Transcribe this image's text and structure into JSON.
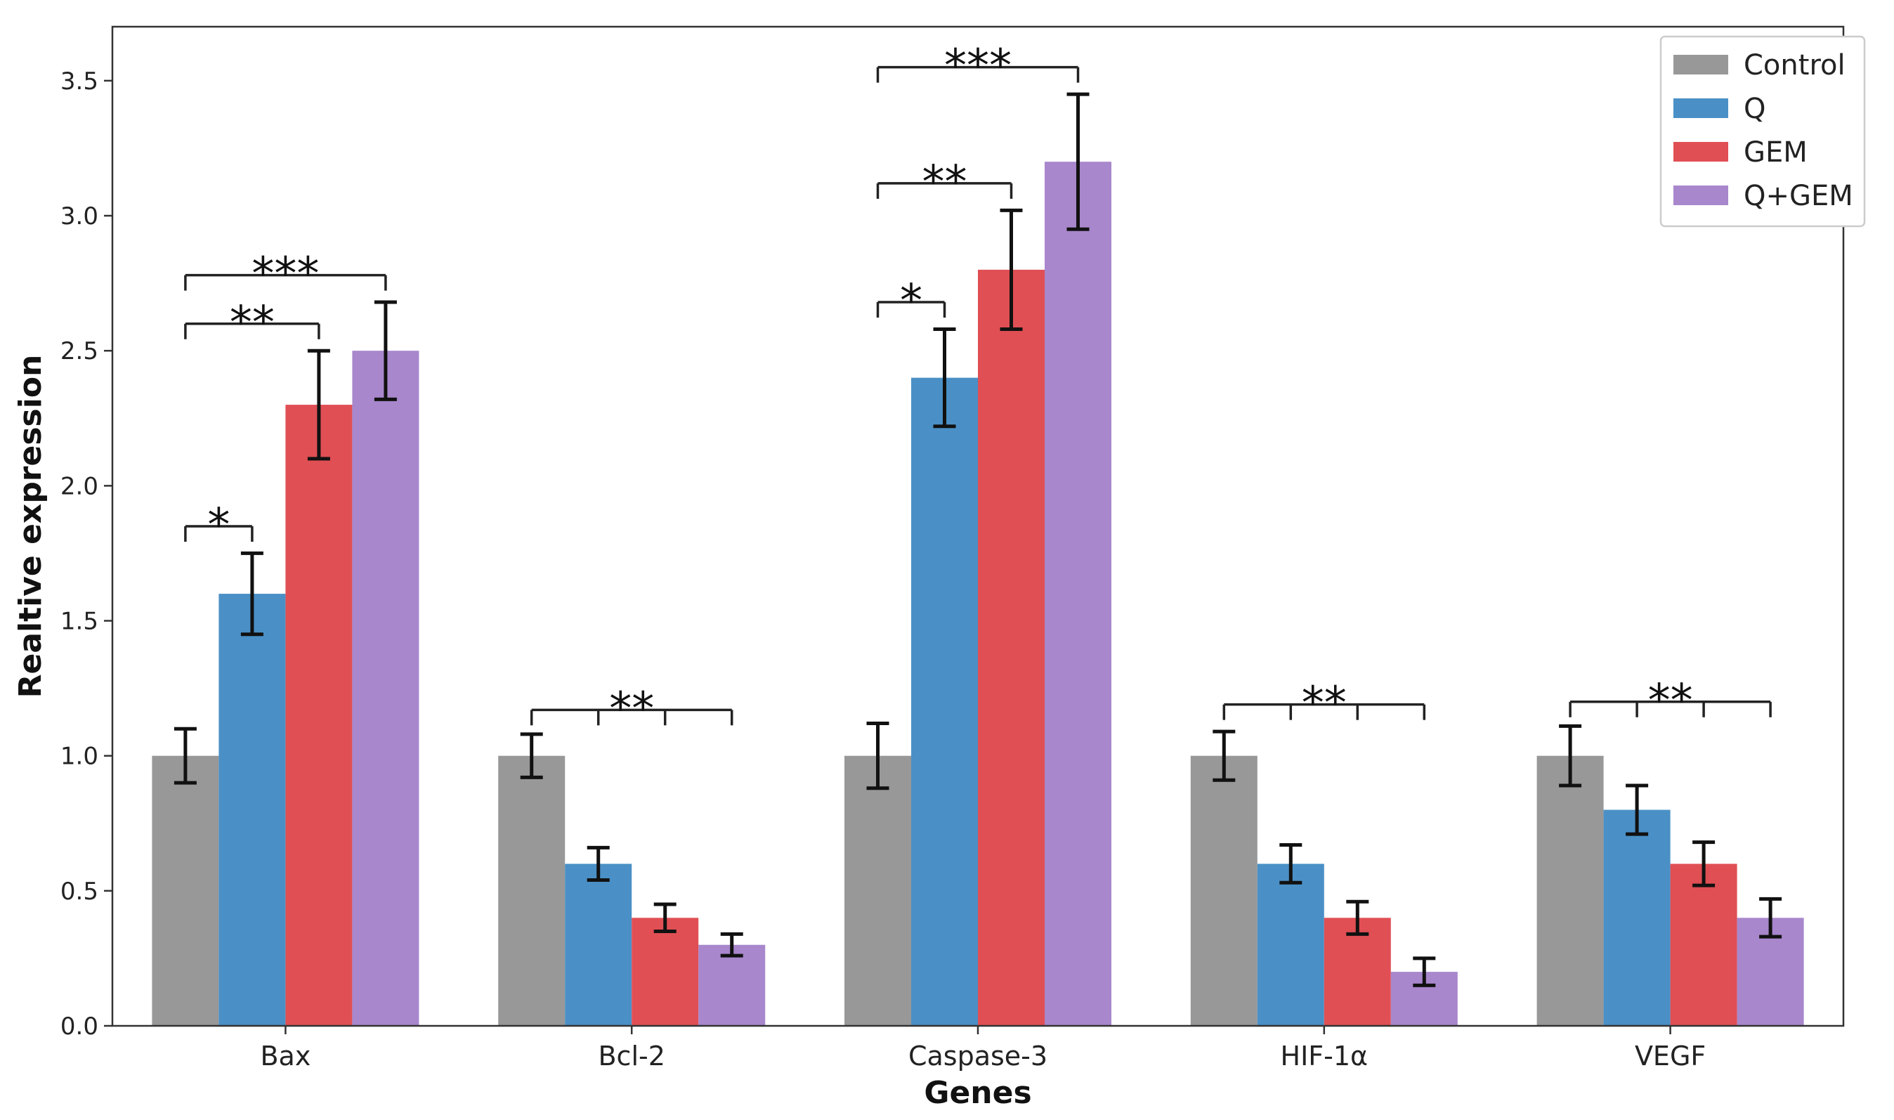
{
  "chart_data": {
    "type": "bar",
    "title": "",
    "xlabel": "Genes",
    "ylabel": "Realtive expression",
    "ylim": [
      0,
      3.7
    ],
    "yticks": [
      "0.0",
      "0.5",
      "1.0",
      "1.5",
      "2.0",
      "2.5",
      "3.0",
      "3.5"
    ],
    "ytick_values": [
      0,
      0.5,
      1.0,
      1.5,
      2.0,
      2.5,
      3.0,
      3.5
    ],
    "categories": [
      "Bax",
      "Bcl-2",
      "Caspase-3",
      "HIF-1α",
      "VEGF"
    ],
    "grid": false,
    "legend_position": "top-right",
    "series": [
      {
        "name": "Control",
        "color": "#989898",
        "values": [
          1.0,
          1.0,
          1.0,
          1.0,
          1.0
        ],
        "errors": [
          0.1,
          0.08,
          0.12,
          0.09,
          0.11
        ]
      },
      {
        "name": "Q",
        "color": "#4a90c6",
        "values": [
          1.6,
          0.6,
          2.4,
          0.6,
          0.8
        ],
        "errors": [
          0.15,
          0.06,
          0.18,
          0.07,
          0.09
        ]
      },
      {
        "name": "GEM",
        "color": "#e04f54",
        "values": [
          2.3,
          0.4,
          2.8,
          0.4,
          0.6
        ],
        "errors": [
          0.2,
          0.05,
          0.22,
          0.06,
          0.08
        ]
      },
      {
        "name": "Q+GEM",
        "color": "#a887cc",
        "values": [
          2.5,
          0.3,
          3.2,
          0.2,
          0.4
        ],
        "errors": [
          0.18,
          0.04,
          0.25,
          0.05,
          0.07
        ]
      }
    ],
    "annotations": [
      {
        "category": 0,
        "type": "pair",
        "from": 0,
        "to": 1,
        "level": 1.85,
        "text": "*"
      },
      {
        "category": 0,
        "type": "pair",
        "from": 0,
        "to": 2,
        "level": 2.6,
        "text": "**"
      },
      {
        "category": 0,
        "type": "pair",
        "from": 0,
        "to": 3,
        "level": 2.78,
        "text": "***"
      },
      {
        "category": 1,
        "type": "group",
        "from": 0,
        "to": 3,
        "level": 1.17,
        "text": "**"
      },
      {
        "category": 2,
        "type": "pair",
        "from": 0,
        "to": 1,
        "level": 2.68,
        "text": "*"
      },
      {
        "category": 2,
        "type": "pair",
        "from": 0,
        "to": 2,
        "level": 3.12,
        "text": "**"
      },
      {
        "category": 2,
        "type": "pair",
        "from": 0,
        "to": 3,
        "level": 3.55,
        "text": "***"
      },
      {
        "category": 3,
        "type": "group",
        "from": 0,
        "to": 3,
        "level": 1.19,
        "text": "**"
      },
      {
        "category": 4,
        "type": "group",
        "from": 0,
        "to": 3,
        "level": 1.2,
        "text": "**"
      }
    ]
  }
}
